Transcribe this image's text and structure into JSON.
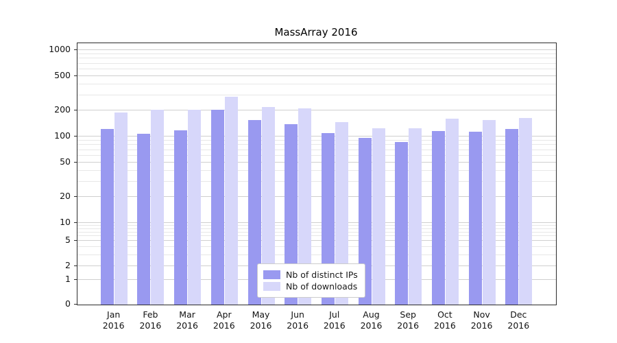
{
  "chart_data": {
    "type": "bar",
    "title": "MassArray 2016",
    "categories": [
      "Jan 2016",
      "Feb 2016",
      "Mar 2016",
      "Apr 2016",
      "May 2016",
      "Jun 2016",
      "Jul 2016",
      "Aug 2016",
      "Sep 2016",
      "Oct 2016",
      "Nov 2016",
      "Dec 2016"
    ],
    "series": [
      {
        "name": "Nb of distinct IPs",
        "color": "#9999f0",
        "values": [
          122,
          108,
          118,
          205,
          155,
          140,
          110,
          97,
          87,
          116,
          114,
          122
        ]
      },
      {
        "name": "Nb of downloads",
        "color": "#d7d7fa",
        "values": [
          190,
          205,
          205,
          290,
          220,
          212,
          148,
          124,
          124,
          160,
          156,
          165
        ]
      }
    ],
    "yticks": [
      0,
      1,
      2,
      5,
      10,
      20,
      50,
      100,
      200,
      500,
      1000
    ],
    "yscale": "symlog",
    "ylim": [
      0,
      1200
    ],
    "grid": "horizontal",
    "legend_position": "bottom-center"
  }
}
